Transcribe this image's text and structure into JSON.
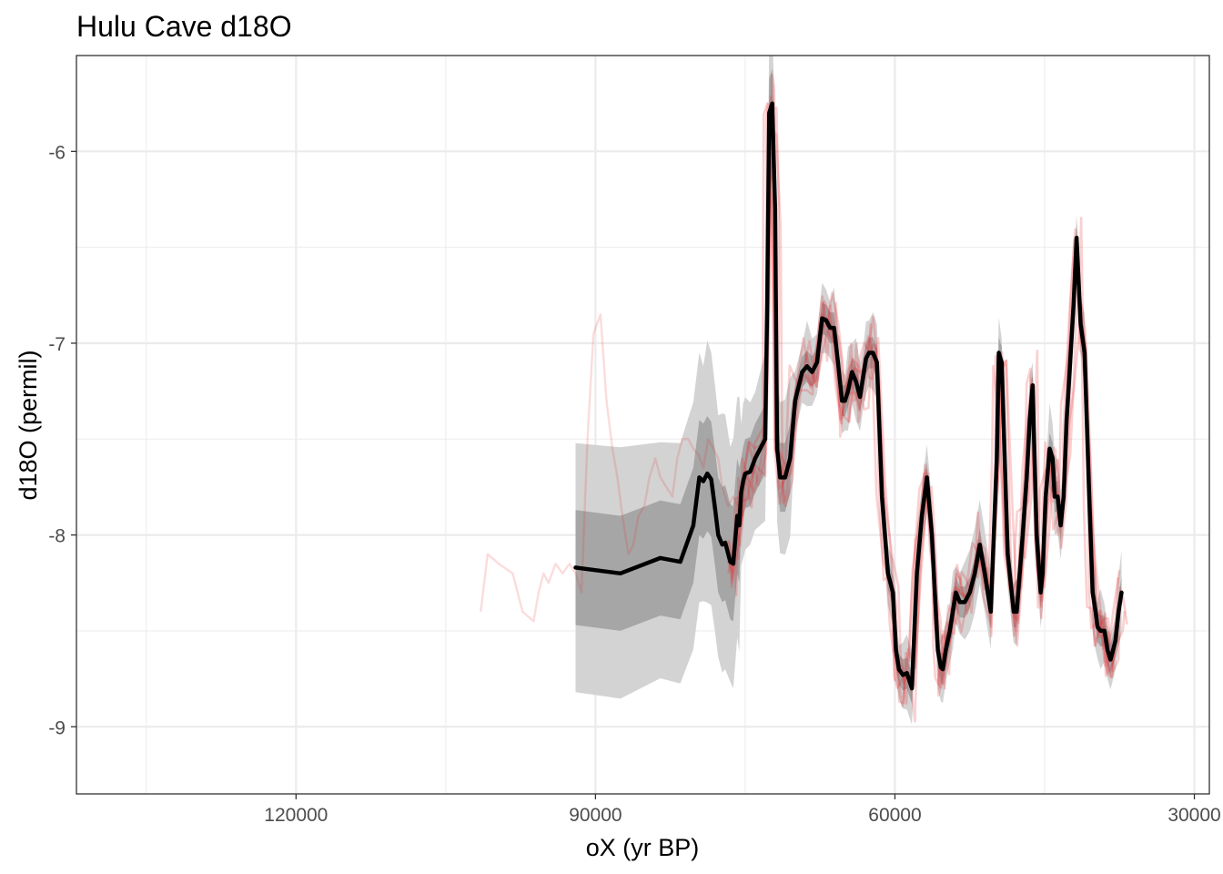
{
  "chart_data": {
    "type": "line",
    "title": "Hulu Cave d18O",
    "xlabel": "oX (yr BP)",
    "ylabel": "d18O (permil)",
    "x_reversed": true,
    "xlim": [
      142000,
      28500
    ],
    "ylim": [
      -9.35,
      -5.5
    ],
    "grid": true,
    "x_ticks": [
      120000,
      90000,
      60000,
      30000
    ],
    "x_tick_labels": [
      "120000",
      "90000",
      "60000",
      "30000"
    ],
    "y_ticks": [
      -6,
      -7,
      -8,
      -9
    ],
    "y_tick_labels": [
      "-6",
      "-7",
      "-8",
      "-9"
    ],
    "colors": {
      "median": "#000000",
      "ensemble": "#e8282c",
      "outer_band": "#d3d3d3",
      "inner_band": "#a6a6a6",
      "grid": "#ebebeb"
    },
    "median": {
      "x": [
        92000,
        87500,
        83500,
        81500,
        80200,
        79600,
        79200,
        78800,
        78400,
        78000,
        77700,
        77300,
        77000,
        76500,
        76200,
        75800,
        75600,
        75400,
        75200,
        75000,
        74500,
        74000,
        73000,
        72800,
        72600,
        72300,
        72000,
        71800,
        71500,
        71000,
        70500,
        70000,
        69300,
        68800,
        68300,
        67800,
        67300,
        66900,
        66500,
        66100,
        65700,
        65300,
        65000,
        64700,
        64300,
        63900,
        63500,
        63200,
        62900,
        62600,
        62200,
        61800,
        61300,
        60700,
        60200,
        59900,
        59600,
        59200,
        58800,
        58300,
        57800,
        57300,
        56800,
        56300,
        56000,
        55700,
        55400,
        55200,
        54900,
        54500,
        54200,
        53900,
        53500,
        53000,
        52500,
        52000,
        51500,
        51000,
        50400,
        49800,
        49600,
        49300,
        48700,
        48300,
        48100,
        47800,
        47500,
        47200,
        46800,
        46500,
        46200,
        45800,
        45400,
        45200,
        44900,
        44500,
        44200,
        44000,
        43700,
        43400,
        43100,
        42800,
        42500,
        42100,
        41800,
        41400,
        41000,
        40600,
        40200,
        39900,
        39700,
        39400,
        39000,
        38700,
        38400,
        37900,
        37600,
        37300
      ],
      "y": [
        -8.17,
        -8.2,
        -8.12,
        -8.14,
        -7.95,
        -7.7,
        -7.72,
        -7.68,
        -7.71,
        -7.87,
        -8.0,
        -8.05,
        -8.04,
        -8.14,
        -8.15,
        -7.9,
        -7.95,
        -7.78,
        -7.72,
        -7.68,
        -7.67,
        -7.6,
        -7.5,
        -6.8,
        -5.8,
        -5.75,
        -6.3,
        -7.55,
        -7.7,
        -7.7,
        -7.6,
        -7.3,
        -7.15,
        -7.12,
        -7.15,
        -7.1,
        -6.87,
        -6.88,
        -6.92,
        -6.92,
        -7.1,
        -7.3,
        -7.3,
        -7.25,
        -7.15,
        -7.2,
        -7.28,
        -7.18,
        -7.08,
        -7.05,
        -7.05,
        -7.1,
        -7.8,
        -8.2,
        -8.3,
        -8.6,
        -8.7,
        -8.73,
        -8.72,
        -8.8,
        -8.2,
        -7.9,
        -7.7,
        -8.0,
        -8.3,
        -8.6,
        -8.69,
        -8.7,
        -8.6,
        -8.5,
        -8.4,
        -8.3,
        -8.35,
        -8.35,
        -8.3,
        -8.2,
        -8.05,
        -8.2,
        -8.4,
        -7.6,
        -7.05,
        -7.1,
        -8.1,
        -8.3,
        -8.4,
        -8.4,
        -8.2,
        -8.0,
        -7.7,
        -7.4,
        -7.22,
        -8.0,
        -8.3,
        -8.2,
        -7.8,
        -7.55,
        -7.6,
        -7.8,
        -7.8,
        -7.95,
        -7.8,
        -7.4,
        -7.15,
        -6.8,
        -6.45,
        -6.9,
        -7.05,
        -7.7,
        -8.3,
        -8.4,
        -8.48,
        -8.5,
        -8.5,
        -8.6,
        -8.65,
        -8.55,
        -8.4,
        -8.3
      ]
    },
    "ensemble_members": 6,
    "older_member": {
      "x": [
        101500,
        100800,
        99700,
        98300,
        97300,
        96200,
        95700,
        95200,
        94700,
        94000,
        93300,
        92600,
        92000,
        91400,
        90800,
        90200,
        89500,
        88900,
        88300,
        87800,
        87300,
        86700,
        86200,
        85700,
        85100,
        84600,
        84000,
        83500,
        82900,
        82300,
        81800,
        81300,
        80700,
        80200,
        79700,
        79200,
        78700,
        78200,
        77700,
        77300,
        76700,
        76200,
        75700,
        75200
      ],
      "y": [
        -8.4,
        -8.1,
        -8.15,
        -8.2,
        -8.4,
        -8.45,
        -8.3,
        -8.2,
        -8.25,
        -8.15,
        -8.2,
        -8.15,
        -8.2,
        -8.3,
        -7.5,
        -6.95,
        -6.85,
        -7.3,
        -7.55,
        -7.7,
        -7.9,
        -8.1,
        -8.05,
        -7.9,
        -7.85,
        -7.7,
        -7.6,
        -7.7,
        -7.75,
        -7.8,
        -7.6,
        -7.5,
        -7.5,
        -7.55,
        -7.58,
        -7.65,
        -7.5,
        -7.55,
        -7.6,
        -7.75,
        -7.85,
        -7.8,
        -7.85,
        -7.9
      ]
    }
  }
}
